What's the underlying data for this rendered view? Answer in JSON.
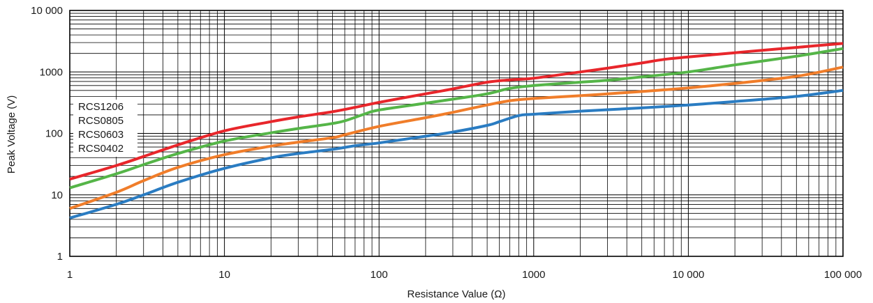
{
  "chart_data": {
    "type": "line",
    "xlabel": "Resistance Value (Ω)",
    "ylabel": "Peak Voltage (V)",
    "x_scale": "log",
    "y_scale": "log",
    "xlim": [
      1,
      100000
    ],
    "ylim": [
      1,
      10000
    ],
    "grid": true,
    "x_ticks": [
      {
        "value": 1,
        "label": "1"
      },
      {
        "value": 10,
        "label": "10"
      },
      {
        "value": 100,
        "label": "100"
      },
      {
        "value": 1000,
        "label": "1000"
      },
      {
        "value": 10000,
        "label": "10 000"
      },
      {
        "value": 100000,
        "label": "100 000"
      }
    ],
    "y_ticks": [
      {
        "value": 1,
        "label": "1"
      },
      {
        "value": 10,
        "label": "10"
      },
      {
        "value": 100,
        "label": "100"
      },
      {
        "value": 1000,
        "label": "1000"
      },
      {
        "value": 10000,
        "label": "10 000"
      }
    ],
    "legend_entries": [
      "RCS1206",
      "RCS0805",
      "RCS0603",
      "RCS0402"
    ],
    "legend_position": "left, inside plot",
    "series": [
      {
        "name": "RCS1206",
        "color": "#e8262b",
        "points": [
          [
            1,
            18
          ],
          [
            2,
            30
          ],
          [
            3,
            42
          ],
          [
            5,
            65
          ],
          [
            10,
            110
          ],
          [
            20,
            155
          ],
          [
            30,
            185
          ],
          [
            50,
            225
          ],
          [
            70,
            265
          ],
          [
            100,
            320
          ],
          [
            200,
            440
          ],
          [
            300,
            530
          ],
          [
            500,
            680
          ],
          [
            700,
            740
          ],
          [
            1000,
            790
          ],
          [
            2000,
            1000
          ],
          [
            3000,
            1150
          ],
          [
            5000,
            1400
          ],
          [
            7000,
            1600
          ],
          [
            10000,
            1750
          ],
          [
            20000,
            2050
          ],
          [
            30000,
            2250
          ],
          [
            50000,
            2500
          ],
          [
            70000,
            2700
          ],
          [
            100000,
            2900
          ]
        ]
      },
      {
        "name": "RCS0805",
        "color": "#55b548",
        "points": [
          [
            1,
            13
          ],
          [
            2,
            22
          ],
          [
            3,
            31
          ],
          [
            5,
            47
          ],
          [
            10,
            75
          ],
          [
            20,
            102
          ],
          [
            30,
            120
          ],
          [
            50,
            145
          ],
          [
            60,
            160
          ],
          [
            80,
            205
          ],
          [
            100,
            240
          ],
          [
            200,
            310
          ],
          [
            300,
            360
          ],
          [
            500,
            440
          ],
          [
            700,
            540
          ],
          [
            1000,
            600
          ],
          [
            2000,
            680
          ],
          [
            3000,
            730
          ],
          [
            5000,
            830
          ],
          [
            10000,
            1000
          ],
          [
            20000,
            1300
          ],
          [
            50000,
            1800
          ],
          [
            100000,
            2400
          ]
        ]
      },
      {
        "name": "RCS0603",
        "color": "#f07d2a",
        "points": [
          [
            1,
            6
          ],
          [
            2,
            11
          ],
          [
            3,
            17
          ],
          [
            5,
            28
          ],
          [
            10,
            45
          ],
          [
            20,
            62
          ],
          [
            30,
            72
          ],
          [
            50,
            85
          ],
          [
            60,
            95
          ],
          [
            100,
            130
          ],
          [
            200,
            180
          ],
          [
            300,
            220
          ],
          [
            500,
            290
          ],
          [
            700,
            340
          ],
          [
            1000,
            370
          ],
          [
            2000,
            410
          ],
          [
            3000,
            440
          ],
          [
            5000,
            480
          ],
          [
            10000,
            550
          ],
          [
            20000,
            650
          ],
          [
            50000,
            850
          ],
          [
            100000,
            1200
          ]
        ]
      },
      {
        "name": "RCS0402",
        "color": "#2a7cc2",
        "points": [
          [
            1,
            4.2
          ],
          [
            2,
            7
          ],
          [
            3,
            10
          ],
          [
            5,
            16
          ],
          [
            10,
            27
          ],
          [
            20,
            40
          ],
          [
            30,
            47
          ],
          [
            50,
            55
          ],
          [
            70,
            63
          ],
          [
            100,
            70
          ],
          [
            200,
            90
          ],
          [
            300,
            105
          ],
          [
            500,
            135
          ],
          [
            600,
            155
          ],
          [
            800,
            195
          ],
          [
            1000,
            205
          ],
          [
            2000,
            230
          ],
          [
            5000,
            260
          ],
          [
            10000,
            290
          ],
          [
            20000,
            330
          ],
          [
            50000,
            400
          ],
          [
            100000,
            500
          ]
        ]
      }
    ]
  }
}
